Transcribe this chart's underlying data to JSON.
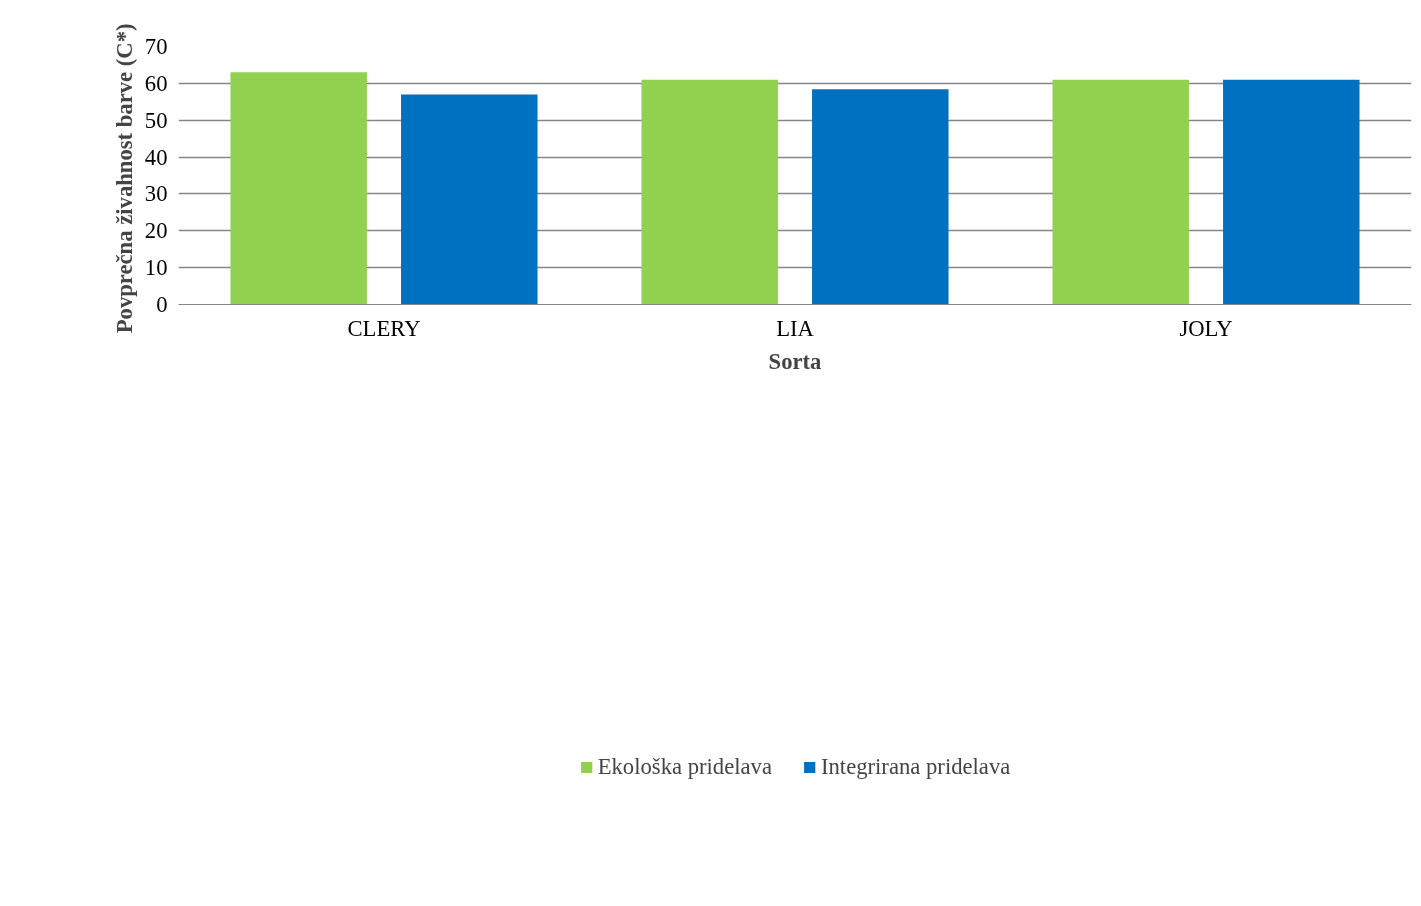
{
  "chart_data": {
    "type": "bar",
    "xlabel": "Sorta",
    "ylabel": "Povprečna  živahnost barve (C*)",
    "categories": [
      "CLERY",
      "LIA",
      "JOLY"
    ],
    "series": [
      {
        "name": "Ekološka pridelava",
        "color": "#92d050",
        "values": [
          63,
          61,
          61
        ]
      },
      {
        "name": "Integrirana pridelava",
        "color": "#0070c0",
        "values": [
          57,
          58.4,
          61
        ]
      }
    ],
    "ylim": [
      0,
      70
    ],
    "yticks": [
      0,
      10,
      20,
      30,
      40,
      50,
      60,
      70
    ],
    "grid": "y",
    "legend": "bottom"
  }
}
